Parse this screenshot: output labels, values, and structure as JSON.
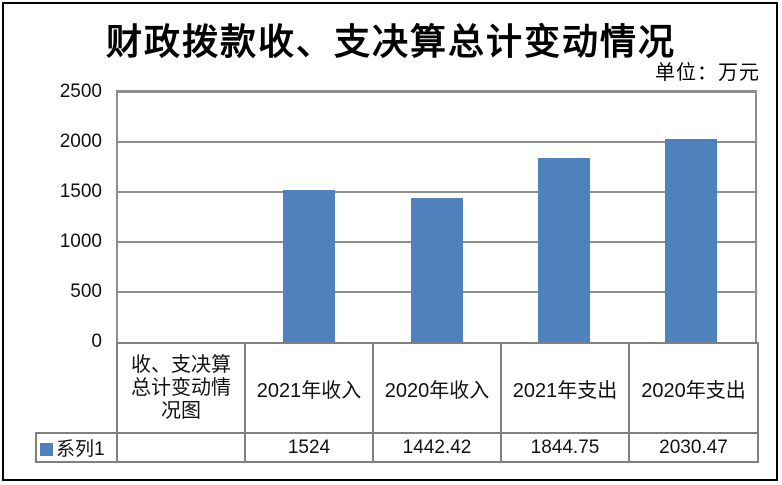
{
  "page": {
    "title": "财政拨款收、支决算总计变动情况",
    "unit_label": "单位：万元"
  },
  "chart_data": {
    "type": "bar",
    "title": "财政拨款收、支决算总计变动情况",
    "subtitle_unit": "单位：万元",
    "categories": [
      "2021年收入",
      "2020年收入",
      "2021年支出",
      "2020年支出"
    ],
    "series": [
      {
        "name": "系列1",
        "values": [
          1524,
          1442.42,
          1844.75,
          2030.47
        ]
      }
    ],
    "ylim": [
      0,
      2500
    ],
    "yticks": [
      0,
      500,
      1000,
      1500,
      2000,
      2500
    ],
    "grid": true,
    "legend_position": "data-table-left",
    "data_table_corner_label": "收、支决算总计变动情况图",
    "colors": {
      "bar": "#4F81BD",
      "gridline": "#8E8E8E",
      "plot_border": "#8E8E8E",
      "table_border": "#808080",
      "frame": "#000000",
      "text": "#000000",
      "background": "#FFFFFF"
    }
  }
}
